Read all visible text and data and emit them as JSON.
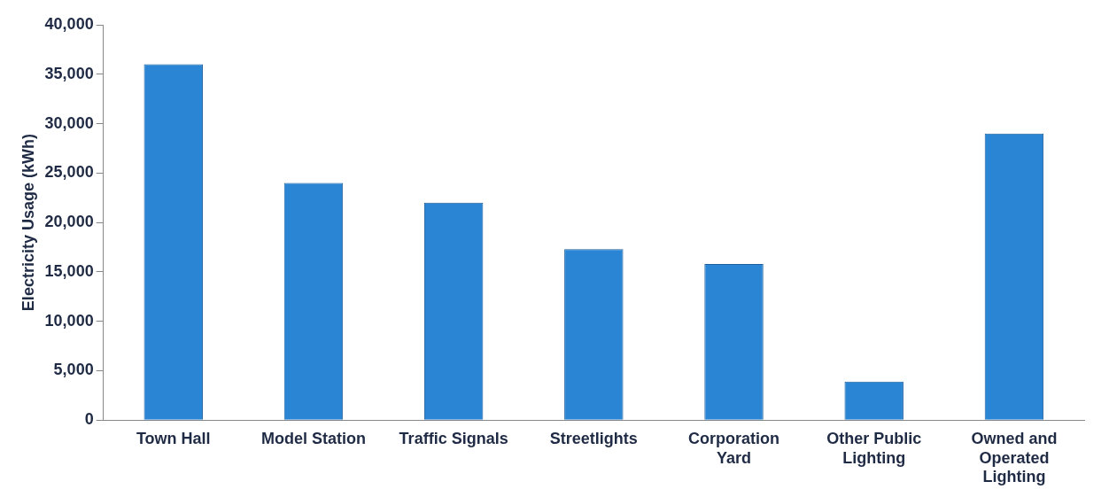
{
  "chart_data": {
    "type": "bar",
    "ylabel": "Electricity Usage (kWh)",
    "categories": [
      "Town Hall",
      "Model Station",
      "Traffic Signals",
      "Streetlights",
      "Corporation Yard",
      "Other Public Lighting",
      "Owned and Operated Lighting"
    ],
    "values": [
      36000,
      24000,
      22000,
      17300,
      15800,
      3900,
      29000
    ],
    "color": "#2a86d4",
    "ylim": [
      0,
      40000
    ],
    "yticks": [
      0,
      {
        "value": 5000,
        "label": "5,000"
      },
      {
        "value": 10000,
        "label": "10,000"
      },
      {
        "value": 15000,
        "label": "15,000"
      },
      {
        "value": 20000,
        "label": "20,000"
      },
      {
        "value": 25000,
        "label": "25,000"
      },
      {
        "value": 30000,
        "label": "30,000"
      },
      {
        "value": 35000,
        "label": "35,000"
      },
      {
        "value": 40000,
        "label": "40,000"
      }
    ],
    "grid": false,
    "legend": false
  }
}
